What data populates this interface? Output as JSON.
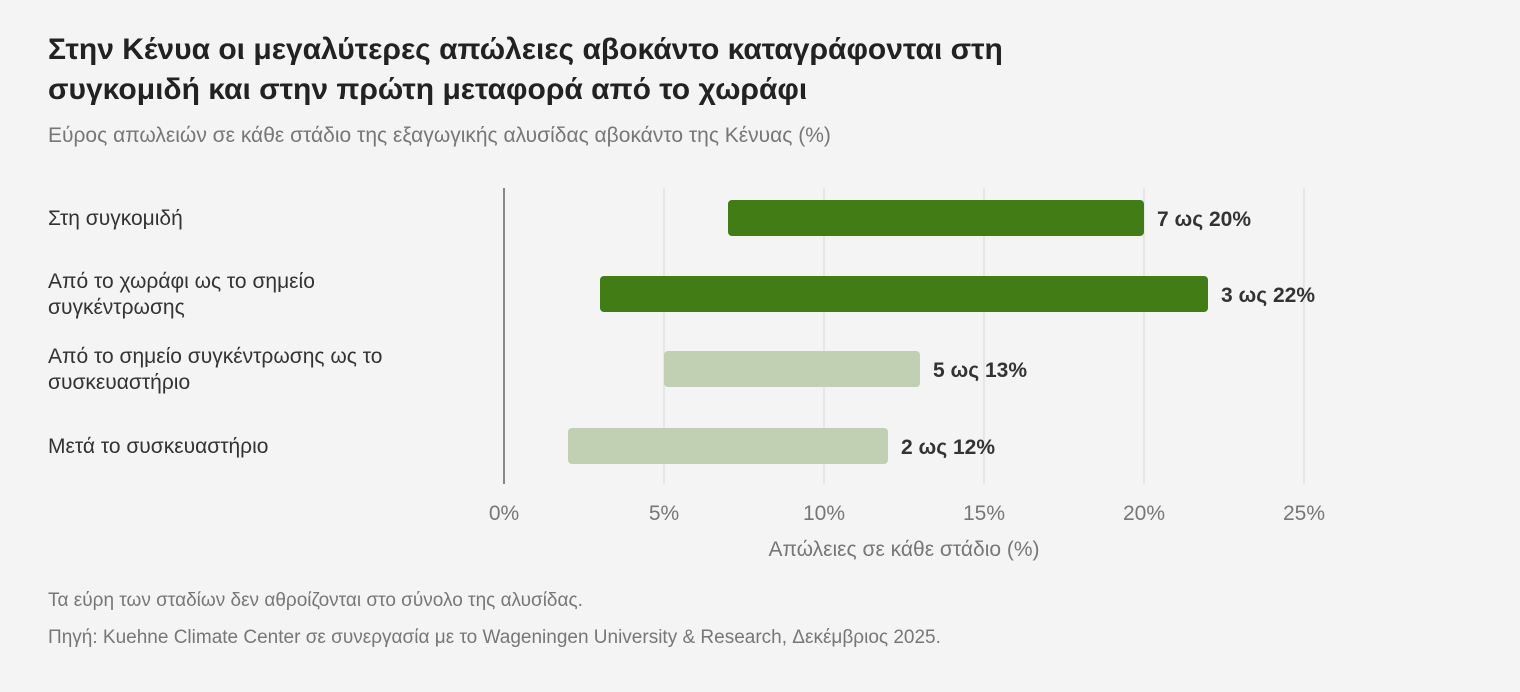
{
  "title": "Στην Κένυα οι μεγαλύτερες απώλειες αβοκάντο καταγράφονται στη συγκομιδή και στην πρώτη μεταφορά από το χωράφι",
  "subtitle": "Εύρος απωλειών σε κάθε στάδιο της εξαγωγικής αλυσίδας αβοκάντο της Κένυας (%)",
  "footnote": "Τα εύρη των σταδίων δεν αθροίζονται στο σύνολο της αλυσίδας.",
  "source": "Πηγή: Kuehne Climate Center σε συνεργασία με το Wageningen University & Research, Δεκέμβριος 2025.",
  "colors": {
    "dark_bar": "#427c14",
    "light_bar": "#c1cfb3",
    "grid": "#e2e2e2",
    "axis": "#888888"
  },
  "chart_data": {
    "type": "bar",
    "orientation": "horizontal-range",
    "categories": [
      [
        "Στη συγκομιδή"
      ],
      [
        "Από το χωράφι ως το σημείο",
        "συγκέντρωσης"
      ],
      [
        "Από το σημείο συγκέντρωσης ως το",
        "συσκευαστήριο"
      ],
      [
        "Μετά το συσκευαστήριο"
      ]
    ],
    "ranges": [
      [
        7,
        20
      ],
      [
        3,
        22
      ],
      [
        5,
        13
      ],
      [
        2,
        12
      ]
    ],
    "value_labels": [
      "7 ως 20%",
      "3 ως 22%",
      "5 ως 13%",
      "2 ως 12%"
    ],
    "highlight": [
      true,
      true,
      false,
      false
    ],
    "xlabel": "Απώλειες σε κάθε στάδιο (%)",
    "xlim": [
      0,
      25
    ],
    "ticks": [
      0,
      5,
      10,
      15,
      20,
      25
    ],
    "tick_labels": [
      "0%",
      "5%",
      "10%",
      "15%",
      "20%",
      "25%"
    ],
    "grid": true
  }
}
